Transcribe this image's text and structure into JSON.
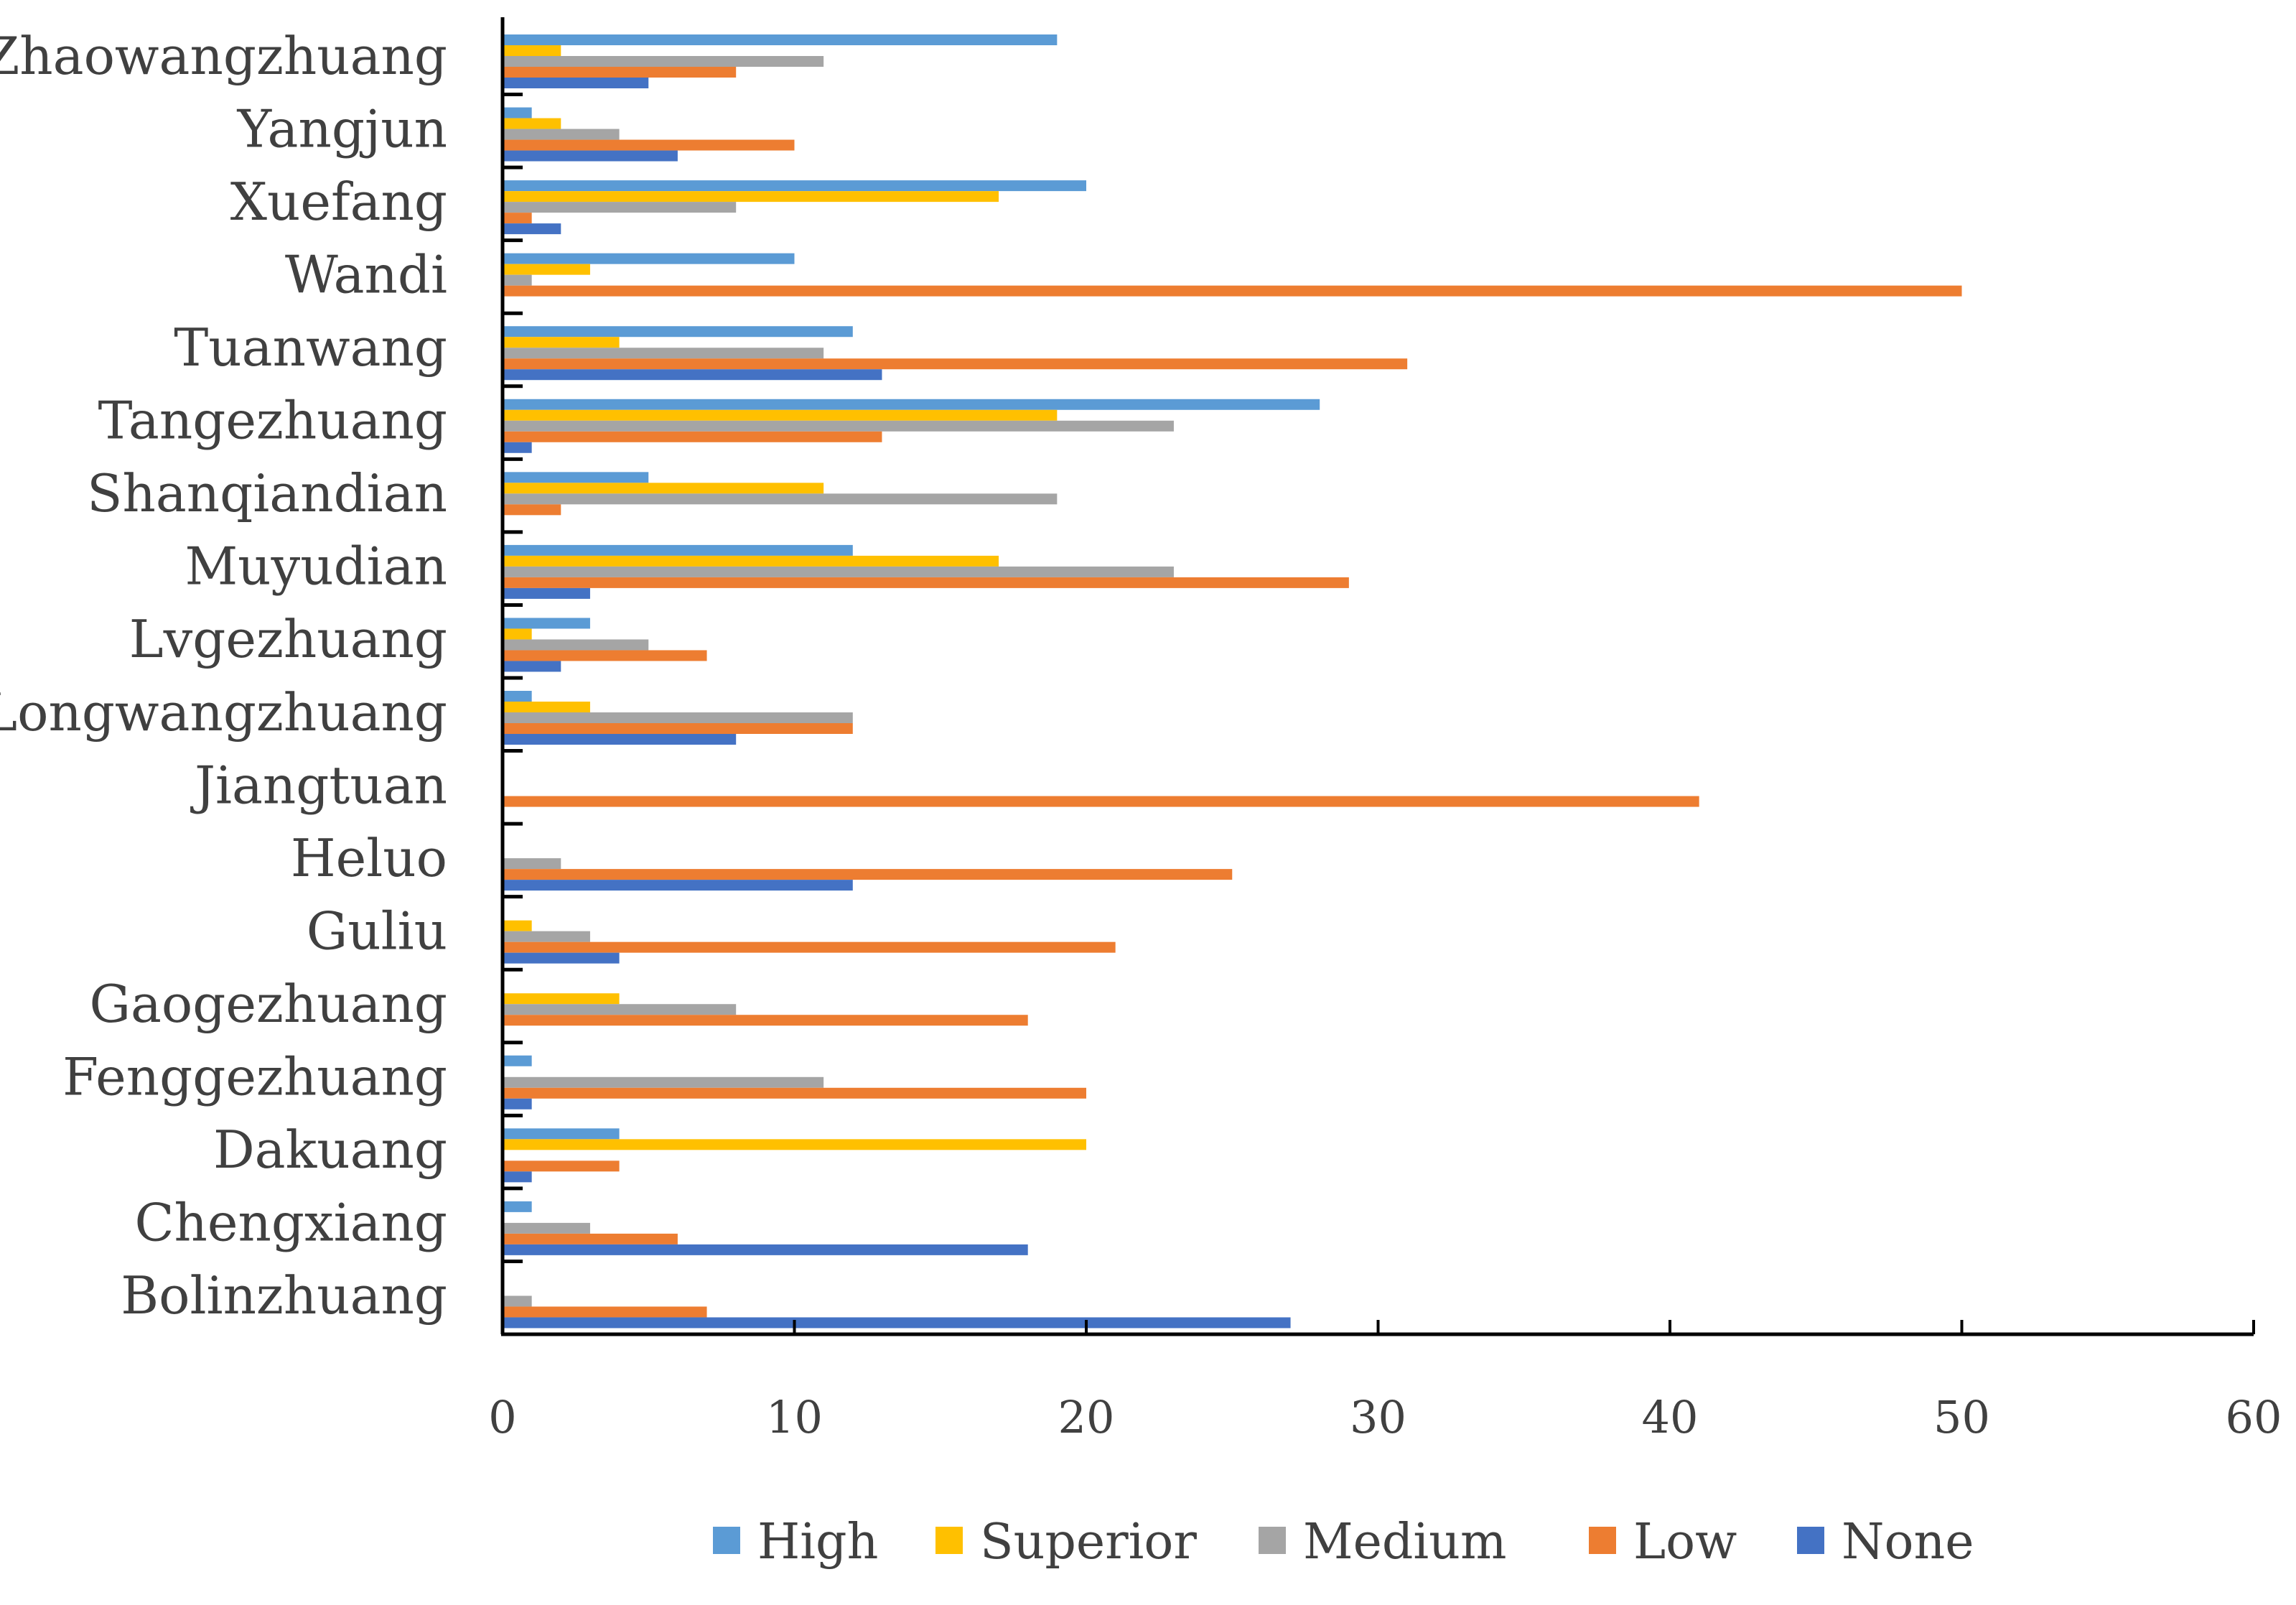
{
  "chart_data": {
    "type": "bar",
    "orientation": "horizontal",
    "title": "",
    "xlabel": "",
    "ylabel": "",
    "xlim": [
      0,
      60
    ],
    "xticks": [
      0,
      10,
      20,
      30,
      40,
      50,
      60
    ],
    "grid": false,
    "legend_position": "bottom",
    "categories": [
      "Zhaowangzhuang",
      "Yangjun",
      "Xuefang",
      "Wandi",
      "Tuanwang",
      "Tangezhuang",
      "Shanqiandian",
      "Muyudian",
      "Lvgezhuang",
      "Longwangzhuang",
      "Jiangtuan",
      "Heluo",
      "Guliu",
      "Gaogezhuang",
      "Fenggezhuang",
      "Dakuang",
      "Chengxiang",
      "Bolinzhuang"
    ],
    "series": [
      {
        "name": "High",
        "color": "#5B9BD5",
        "values": [
          19,
          1,
          20,
          10,
          12,
          28,
          5,
          12,
          3,
          1,
          0,
          0,
          0,
          0,
          1,
          4,
          1,
          0
        ]
      },
      {
        "name": "Superior",
        "color": "#FFC000",
        "values": [
          2,
          2,
          17,
          3,
          4,
          19,
          11,
          17,
          1,
          3,
          0,
          0,
          1,
          4,
          0,
          20,
          0,
          0
        ]
      },
      {
        "name": "Medium",
        "color": "#A5A5A5",
        "values": [
          11,
          4,
          8,
          1,
          11,
          23,
          19,
          23,
          5,
          12,
          0,
          2,
          3,
          8,
          11,
          0,
          3,
          1
        ]
      },
      {
        "name": "Low",
        "color": "#ED7D31",
        "values": [
          8,
          10,
          1,
          50,
          31,
          13,
          2,
          29,
          7,
          12,
          41,
          25,
          21,
          18,
          20,
          4,
          6,
          7
        ]
      },
      {
        "name": "None",
        "color": "#4472C4",
        "values": [
          5,
          6,
          2,
          0,
          13,
          1,
          0,
          3,
          2,
          8,
          0,
          12,
          4,
          0,
          1,
          1,
          18,
          27
        ]
      }
    ]
  }
}
